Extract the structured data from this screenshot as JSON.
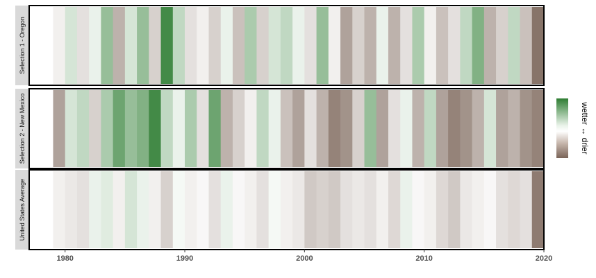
{
  "chart_data": {
    "type": "heatmap",
    "description_key": "Annual drought/wetness stripes, one column per year",
    "xlabel": "",
    "ylabel": "",
    "xlim": [
      1977,
      2020
    ],
    "x_ticks": [
      1980,
      1990,
      2000,
      2010,
      2020
    ],
    "legend": {
      "title": "wetter ↔ drier",
      "position": "right",
      "colors": [
        "#2e7d32",
        "#ffffff",
        "#7a6458"
      ]
    },
    "series": [
      {
        "name": "Selection 1 -  Oregon",
        "years_start": 1979,
        "values": [
          0.1,
          -0.2,
          0.2,
          -0.1,
          -0.5,
          0.5,
          -0.2,
          -0.5,
          0.3,
          -0.9,
          -0.3,
          0.2,
          0.1,
          0.3,
          -0.1,
          0.4,
          -0.4,
          0.3,
          -0.2,
          -0.3,
          -0.1,
          0.2,
          -0.5,
          0.1,
          0.6,
          0.3,
          0.5,
          -0.1,
          0.5,
          0.2,
          -0.4,
          0.1,
          0.4,
          0.2,
          -0.3,
          -0.6,
          0.5,
          0.3,
          -0.3,
          0.4,
          0.9
        ]
      },
      {
        "name": "Selection 2 -  New Mexico",
        "years_start": 1979,
        "values": [
          0.6,
          -0.2,
          -0.3,
          0.3,
          -0.4,
          -0.7,
          -0.5,
          -0.6,
          -0.9,
          -0.3,
          -0.1,
          -0.4,
          0.2,
          -0.7,
          0.5,
          0.3,
          0.1,
          -0.3,
          -0.1,
          0.4,
          0.6,
          0.2,
          0.5,
          0.8,
          0.7,
          0.3,
          -0.5,
          0.6,
          0.2,
          -0.1,
          0.5,
          -0.3,
          0.6,
          0.8,
          0.7,
          0.5,
          -0.2,
          0.6,
          0.5,
          0.7,
          0.8
        ]
      },
      {
        "name": "United States Average",
        "years_start": 1979,
        "values": [
          0.1,
          0.15,
          0.2,
          -0.1,
          -0.15,
          0.1,
          -0.2,
          -0.1,
          0.1,
          0.3,
          -0.05,
          0.1,
          0.05,
          0.2,
          -0.1,
          0.05,
          0.1,
          0.2,
          -0.05,
          0.1,
          0.15,
          0.35,
          0.3,
          0.35,
          0.2,
          0.15,
          0.2,
          0.1,
          0.25,
          -0.1,
          0.05,
          0.1,
          0.25,
          0.35,
          0.15,
          0.1,
          0.05,
          0.2,
          0.25,
          0.2,
          0.85
        ]
      }
    ]
  }
}
